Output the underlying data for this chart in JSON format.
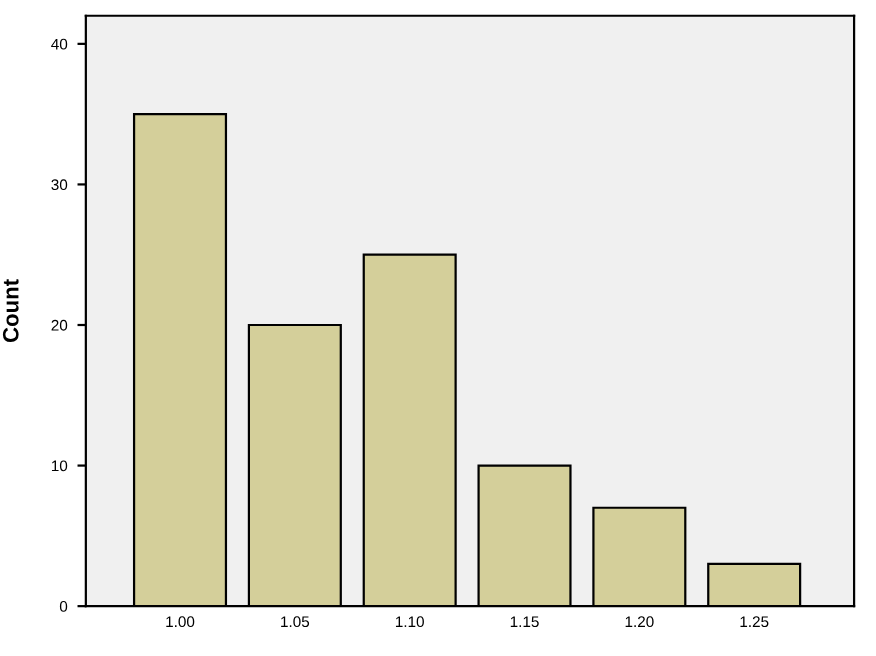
{
  "chart_data": {
    "type": "bar",
    "categories": [
      "1.00",
      "1.05",
      "1.10",
      "1.15",
      "1.20",
      "1.25"
    ],
    "values": [
      35,
      20,
      25,
      10,
      7,
      3
    ],
    "color": "#d4cf9a",
    "ylabel": "Count",
    "ylim": [
      0,
      42
    ],
    "yticks": [
      0,
      10,
      20,
      30,
      40
    ],
    "grid": false,
    "legend": false
  }
}
